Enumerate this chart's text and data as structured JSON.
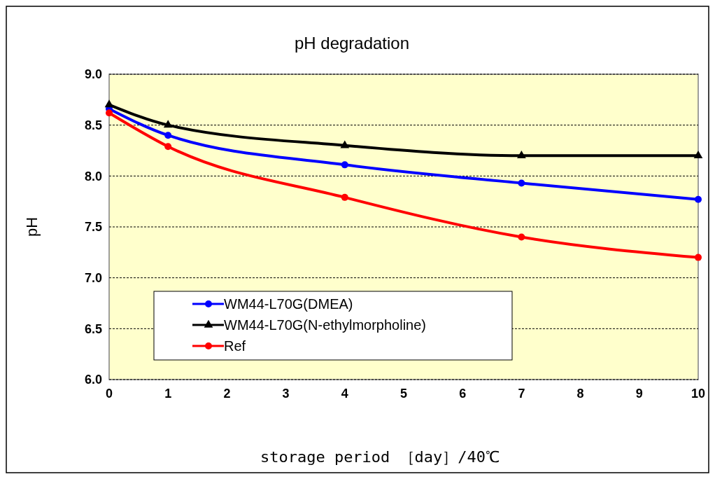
{
  "chart_data": {
    "type": "line",
    "title": "pH degradation",
    "xlabel": "storage period ［day］/40℃",
    "ylabel": "pH",
    "x": [
      0,
      1,
      4,
      7,
      10
    ],
    "series": [
      {
        "name": "WM44-L70G(DMEA)",
        "color": "#0000ff",
        "marker": "circle",
        "values": [
          8.66,
          8.4,
          8.11,
          7.93,
          7.77
        ]
      },
      {
        "name": "WM44-L70G(N-ethylmorpholine)",
        "color": "#000000",
        "marker": "triangle",
        "values": [
          8.7,
          8.5,
          8.3,
          8.2,
          8.2
        ]
      },
      {
        "name": "Ref",
        "color": "#ff0000",
        "marker": "circle",
        "values": [
          8.62,
          8.29,
          7.79,
          7.4,
          7.2
        ]
      }
    ],
    "xlim": [
      0,
      10
    ],
    "xticks": [
      0,
      1,
      2,
      3,
      4,
      5,
      6,
      7,
      8,
      9,
      10
    ],
    "ylim": [
      6.0,
      9.0
    ],
    "yticks": [
      {
        "value": 6,
        "label": "6.0"
      },
      {
        "value": 6.5,
        "label": "6.5"
      },
      {
        "value": 7,
        "label": "7.0"
      },
      {
        "value": 7.5,
        "label": "7.5"
      },
      {
        "value": 8,
        "label": "8.0"
      },
      {
        "value": 8.5,
        "label": "8.5"
      },
      {
        "value": 9,
        "label": "9.0"
      }
    ],
    "grid": "y",
    "legend": "bottom left"
  }
}
